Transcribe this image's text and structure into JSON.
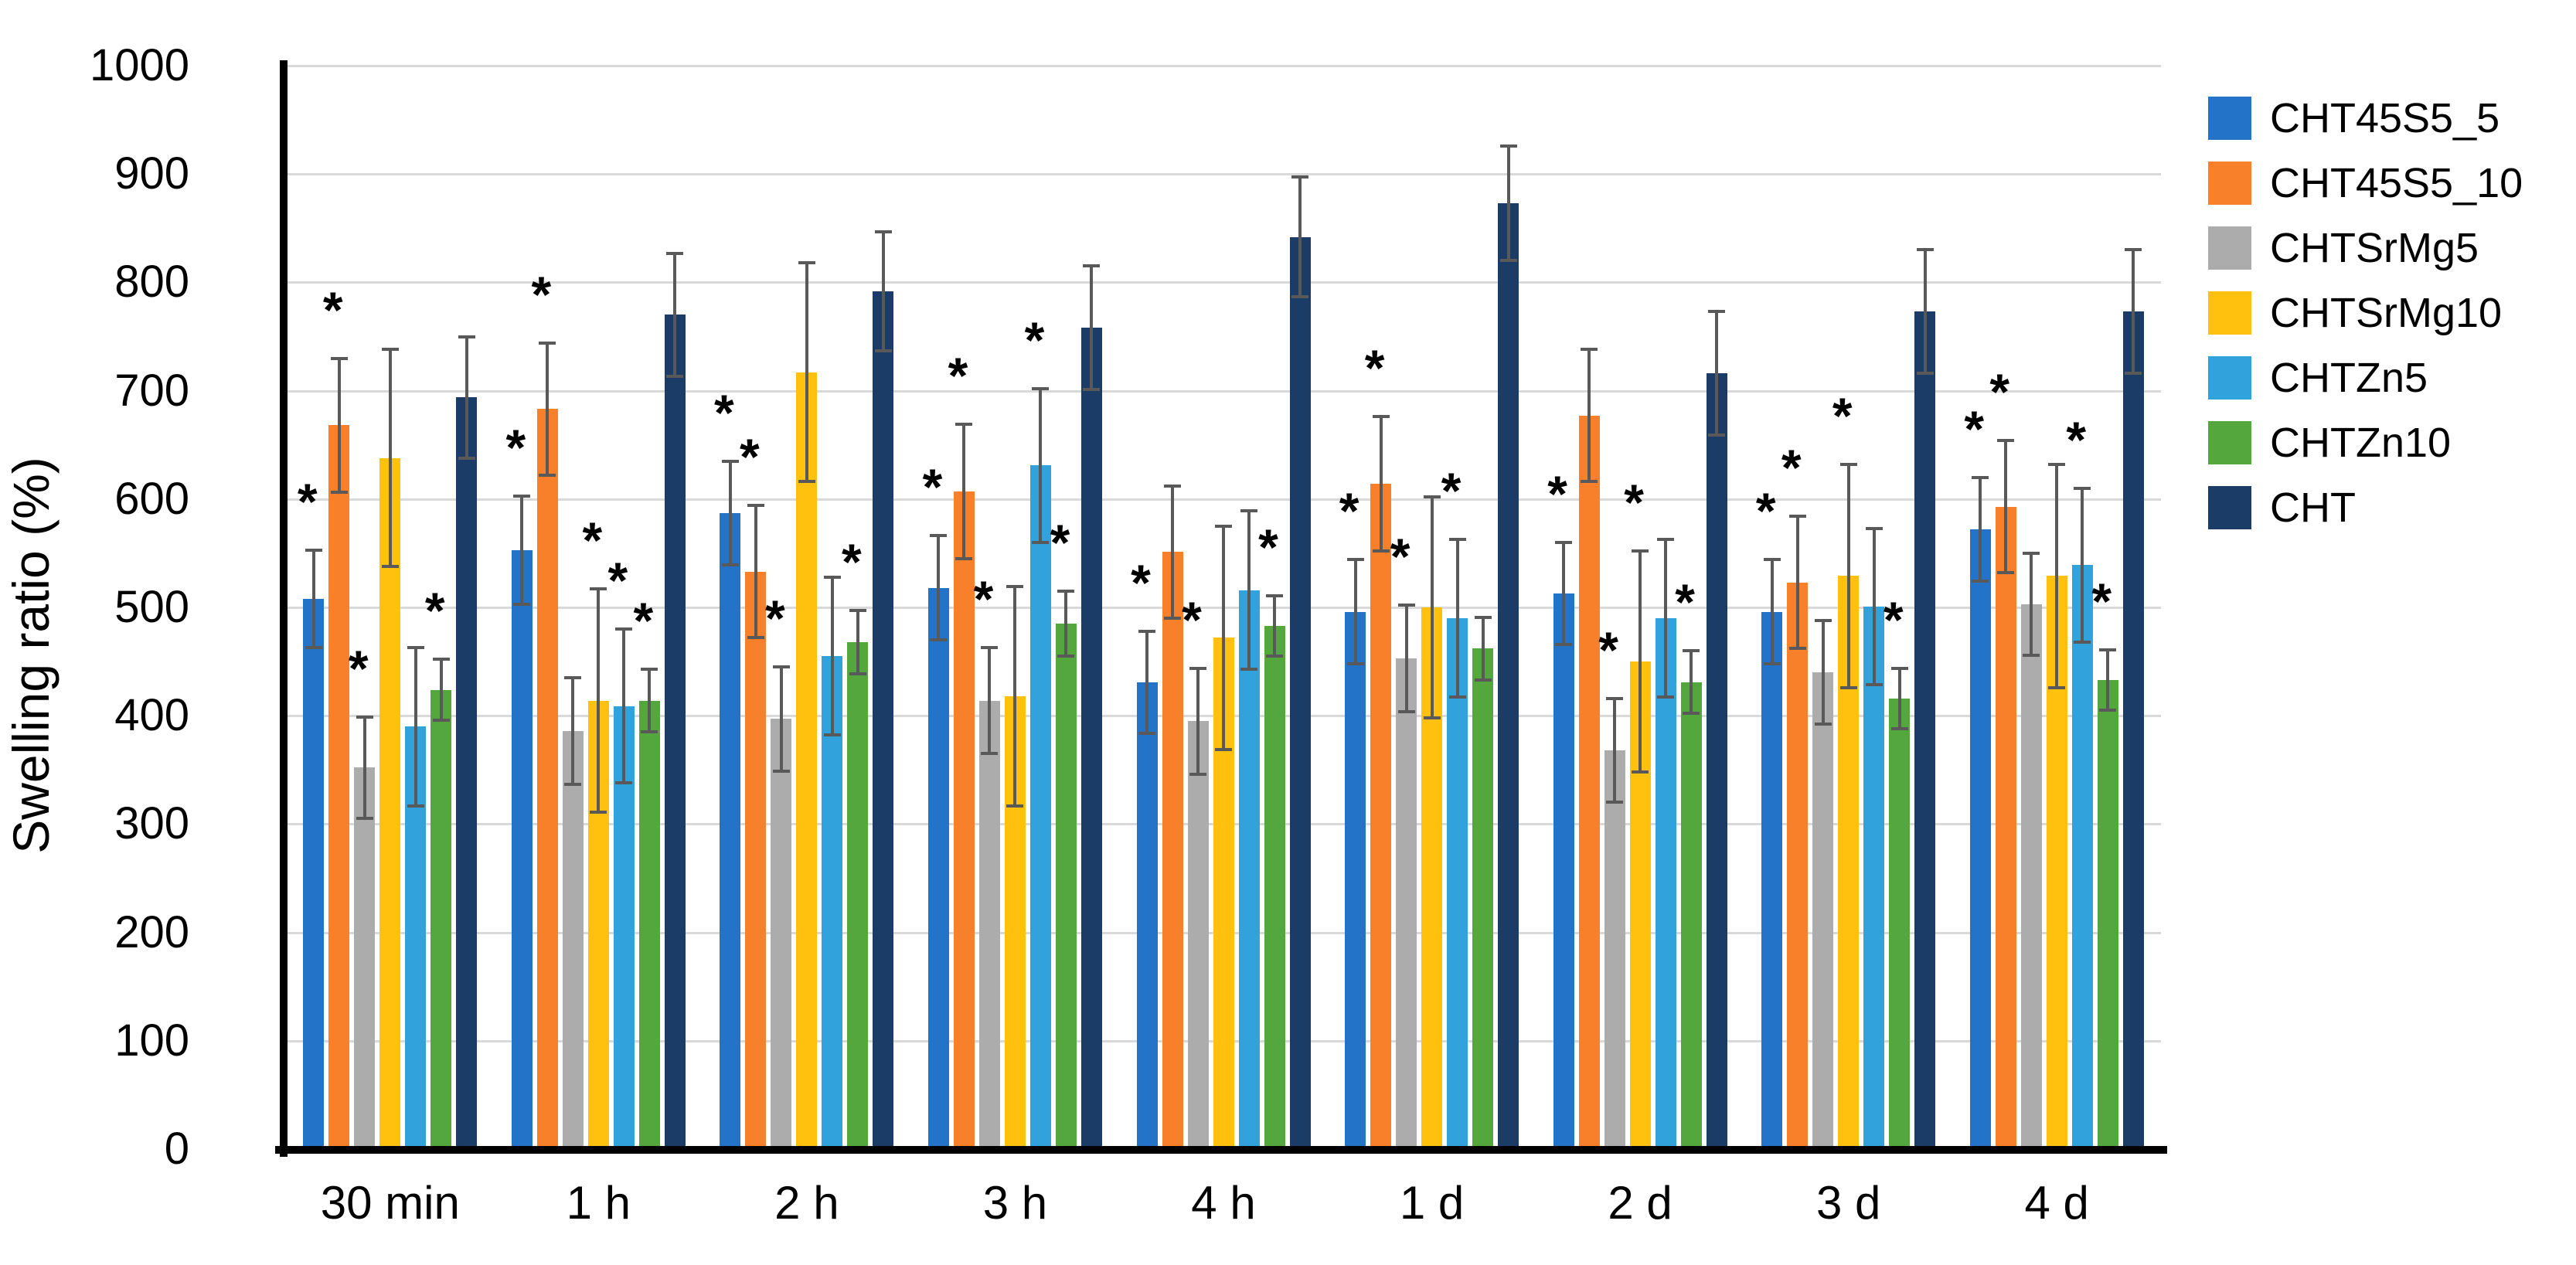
{
  "chart_data": {
    "type": "bar",
    "title": "",
    "ylabel": "Swelling ratio (%)",
    "xlabel": "",
    "ylim": [
      0,
      1000
    ],
    "yticks": [
      0,
      100,
      200,
      300,
      400,
      500,
      600,
      700,
      800,
      900,
      1000
    ],
    "grid": "horizontal",
    "gridline_color": "#d9d9d9",
    "axis_color": "#000000",
    "error_bar_color": "#595959",
    "significance_marker": "*",
    "legend_position": "right",
    "categories": [
      "30 min",
      "1 h",
      "2 h",
      "3 h",
      "4 h",
      "1 d",
      "2 d",
      "3 d",
      "4 d"
    ],
    "series": [
      {
        "name": "CHT45S5_5",
        "color": "#2373c9",
        "values": [
          508,
          553,
          587,
          518,
          431,
          496,
          513,
          496,
          572
        ],
        "errors": [
          45,
          50,
          48,
          48,
          47,
          48,
          47,
          48,
          48
        ],
        "significant": [
          true,
          true,
          true,
          true,
          true,
          true,
          true,
          true,
          true
        ]
      },
      {
        "name": "CHT45S5_10",
        "color": "#f8802b",
        "values": [
          668,
          683,
          533,
          607,
          551,
          614,
          677,
          523,
          593
        ],
        "errors": [
          62,
          61,
          61,
          62,
          61,
          62,
          61,
          61,
          61
        ],
        "significant": [
          true,
          true,
          true,
          true,
          false,
          true,
          false,
          true,
          true
        ]
      },
      {
        "name": "CHTSrMg5",
        "color": "#acacac",
        "values": [
          352,
          386,
          397,
          414,
          395,
          453,
          368,
          440,
          503
        ],
        "errors": [
          47,
          49,
          48,
          49,
          49,
          49,
          48,
          48,
          47
        ],
        "significant": [
          true,
          false,
          true,
          true,
          true,
          true,
          true,
          false,
          false
        ]
      },
      {
        "name": "CHTSrMg10",
        "color": "#ffc00e",
        "values": [
          638,
          414,
          717,
          418,
          472,
          500,
          450,
          529,
          529
        ],
        "errors": [
          100,
          103,
          101,
          101,
          103,
          102,
          102,
          103,
          103
        ],
        "significant": [
          false,
          true,
          false,
          false,
          false,
          false,
          true,
          true,
          false
        ]
      },
      {
        "name": "CHTZn5",
        "color": "#31a2dc",
        "values": [
          390,
          409,
          455,
          631,
          516,
          490,
          490,
          501,
          539
        ],
        "errors": [
          73,
          71,
          73,
          71,
          73,
          73,
          73,
          72,
          71
        ],
        "significant": [
          false,
          true,
          false,
          true,
          false,
          true,
          false,
          false,
          true
        ]
      },
      {
        "name": "CHTZn10",
        "color": "#53a73c",
        "values": [
          424,
          414,
          468,
          485,
          483,
          462,
          431,
          416,
          433
        ],
        "errors": [
          28,
          29,
          29,
          30,
          28,
          29,
          29,
          28,
          28
        ],
        "significant": [
          true,
          true,
          true,
          true,
          true,
          false,
          true,
          true,
          true
        ]
      },
      {
        "name": "CHT",
        "color": "#1b3c66",
        "values": [
          694,
          770,
          792,
          758,
          842,
          873,
          716,
          773,
          773
        ],
        "errors": [
          56,
          57,
          55,
          57,
          55,
          53,
          57,
          57,
          57
        ],
        "significant": [
          false,
          false,
          false,
          false,
          false,
          false,
          false,
          false,
          false
        ]
      }
    ]
  }
}
